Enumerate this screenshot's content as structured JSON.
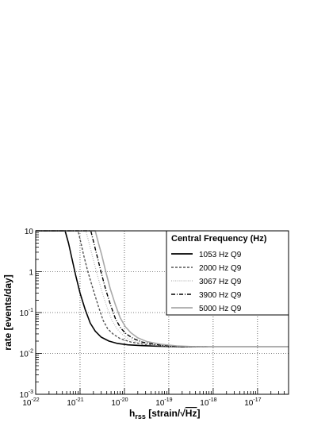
{
  "chart_data": {
    "type": "line",
    "title": "",
    "xlabel": "h_rss [strain/√Hz]",
    "xlabel_main": "h",
    "xlabel_sub": "rss",
    "xlabel_rest": " [strain/",
    "xlabel_sqrt": "Hz",
    "xlabel_end": "]",
    "ylabel": "rate  [events/day]",
    "x_scale": "log",
    "y_scale": "log",
    "xlim": [
      1e-22,
      5e-17
    ],
    "ylim": [
      0.001,
      10
    ],
    "x_ticks": [
      {
        "base": "10",
        "exp": "-22",
        "value": 1e-22
      },
      {
        "base": "10",
        "exp": "-21",
        "value": 1e-21
      },
      {
        "base": "10",
        "exp": "-20",
        "value": 1e-20
      },
      {
        "base": "10",
        "exp": "-19",
        "value": 1e-19
      },
      {
        "base": "10",
        "exp": "-18",
        "value": 1e-18
      },
      {
        "base": "10",
        "exp": "-17",
        "value": 1e-17
      }
    ],
    "y_ticks": [
      {
        "base": "10",
        "exp": "",
        "value": 10
      },
      {
        "base": "1",
        "exp": "",
        "value": 1
      },
      {
        "base": "10",
        "exp": "-1",
        "value": 0.1
      },
      {
        "base": "10",
        "exp": "-2",
        "value": 0.01
      },
      {
        "base": "10",
        "exp": "-3",
        "value": 0.001
      }
    ],
    "grid": true,
    "legend_title": "Central Frequency (Hz)",
    "legend_position": "top-right",
    "series": [
      {
        "name": "1053 Hz Q9",
        "color": "#000000",
        "dash": "solid",
        "width": 1.6,
        "x": [
          1e-22,
          4.6e-22,
          5.5e-22,
          6.5e-22,
          8e-22,
          1e-21,
          1.3e-21,
          1.7e-21,
          2.2e-21,
          3e-21,
          4.5e-21,
          7e-21,
          1.2e-20,
          2.5e-20,
          6e-20,
          2e-19,
          1e-18,
          1e-17,
          5e-17
        ],
        "y": [
          10,
          10,
          5,
          2.2,
          0.8,
          0.3,
          0.12,
          0.055,
          0.035,
          0.025,
          0.02,
          0.0175,
          0.0162,
          0.0155,
          0.015,
          0.0145,
          0.0145,
          0.0145,
          0.0145
        ]
      },
      {
        "name": "2000 Hz Q9",
        "color": "#555555",
        "dash": "dashed",
        "width": 1.4,
        "x": [
          1e-22,
          9e-22,
          1.05e-21,
          1.2e-21,
          1.5e-21,
          2e-21,
          2.6e-21,
          3.3e-21,
          4.2e-21,
          5.5e-21,
          8e-21,
          1.4e-20,
          3e-20,
          8e-20,
          2e-19,
          1e-18,
          1e-17,
          5e-17
        ],
        "y": [
          10,
          10,
          5,
          2.6,
          1.0,
          0.35,
          0.14,
          0.065,
          0.04,
          0.03,
          0.023,
          0.019,
          0.0165,
          0.0152,
          0.0147,
          0.0145,
          0.0145,
          0.0145
        ]
      },
      {
        "name": "3067 Hz Q9",
        "color": "#bdbdbd",
        "dash": "dotted",
        "width": 1.3,
        "x": [
          1e-22,
          1.35e-21,
          1.6e-21,
          1.9e-21,
          2.4e-21,
          3.1e-21,
          4e-21,
          5.2e-21,
          6.8e-21,
          9e-21,
          1.3e-20,
          2e-20,
          4e-20,
          1e-19,
          2.5e-19,
          1e-18,
          1e-17,
          5e-17
        ],
        "y": [
          10,
          10,
          5,
          2.4,
          0.9,
          0.33,
          0.14,
          0.065,
          0.04,
          0.029,
          0.022,
          0.0185,
          0.0162,
          0.015,
          0.0146,
          0.0145,
          0.0145,
          0.0145
        ]
      },
      {
        "name": "3900 Hz Q9",
        "color": "#000000",
        "dash": "dashdot",
        "width": 1.4,
        "x": [
          1e-22,
          1.75e-21,
          2.05e-21,
          2.4e-21,
          3e-21,
          3.8e-21,
          4.9e-21,
          6.3e-21,
          8.2e-21,
          1.1e-20,
          1.6e-20,
          2.5e-20,
          5e-20,
          1.2e-19,
          3e-19,
          1e-18,
          1e-17,
          5e-17
        ],
        "y": [
          10,
          10,
          5,
          2.5,
          0.95,
          0.36,
          0.15,
          0.07,
          0.042,
          0.03,
          0.023,
          0.019,
          0.0165,
          0.0151,
          0.0146,
          0.0145,
          0.0145,
          0.0145
        ]
      },
      {
        "name": "5000 Hz Q9",
        "color": "#a9a9a9",
        "dash": "solid",
        "width": 1.6,
        "x": [
          1e-22,
          2.2e-21,
          2.6e-21,
          3.1e-21,
          3.8e-21,
          4.8e-21,
          6.2e-21,
          8e-21,
          1.05e-20,
          1.4e-20,
          2e-20,
          3.2e-20,
          6.5e-20,
          1.5e-19,
          3.5e-19,
          1e-18,
          1e-17,
          5e-17
        ],
        "y": [
          10,
          10,
          5,
          2.5,
          1.0,
          0.38,
          0.16,
          0.075,
          0.045,
          0.032,
          0.024,
          0.0195,
          0.0168,
          0.0153,
          0.0147,
          0.0145,
          0.0145,
          0.0145
        ]
      }
    ]
  }
}
